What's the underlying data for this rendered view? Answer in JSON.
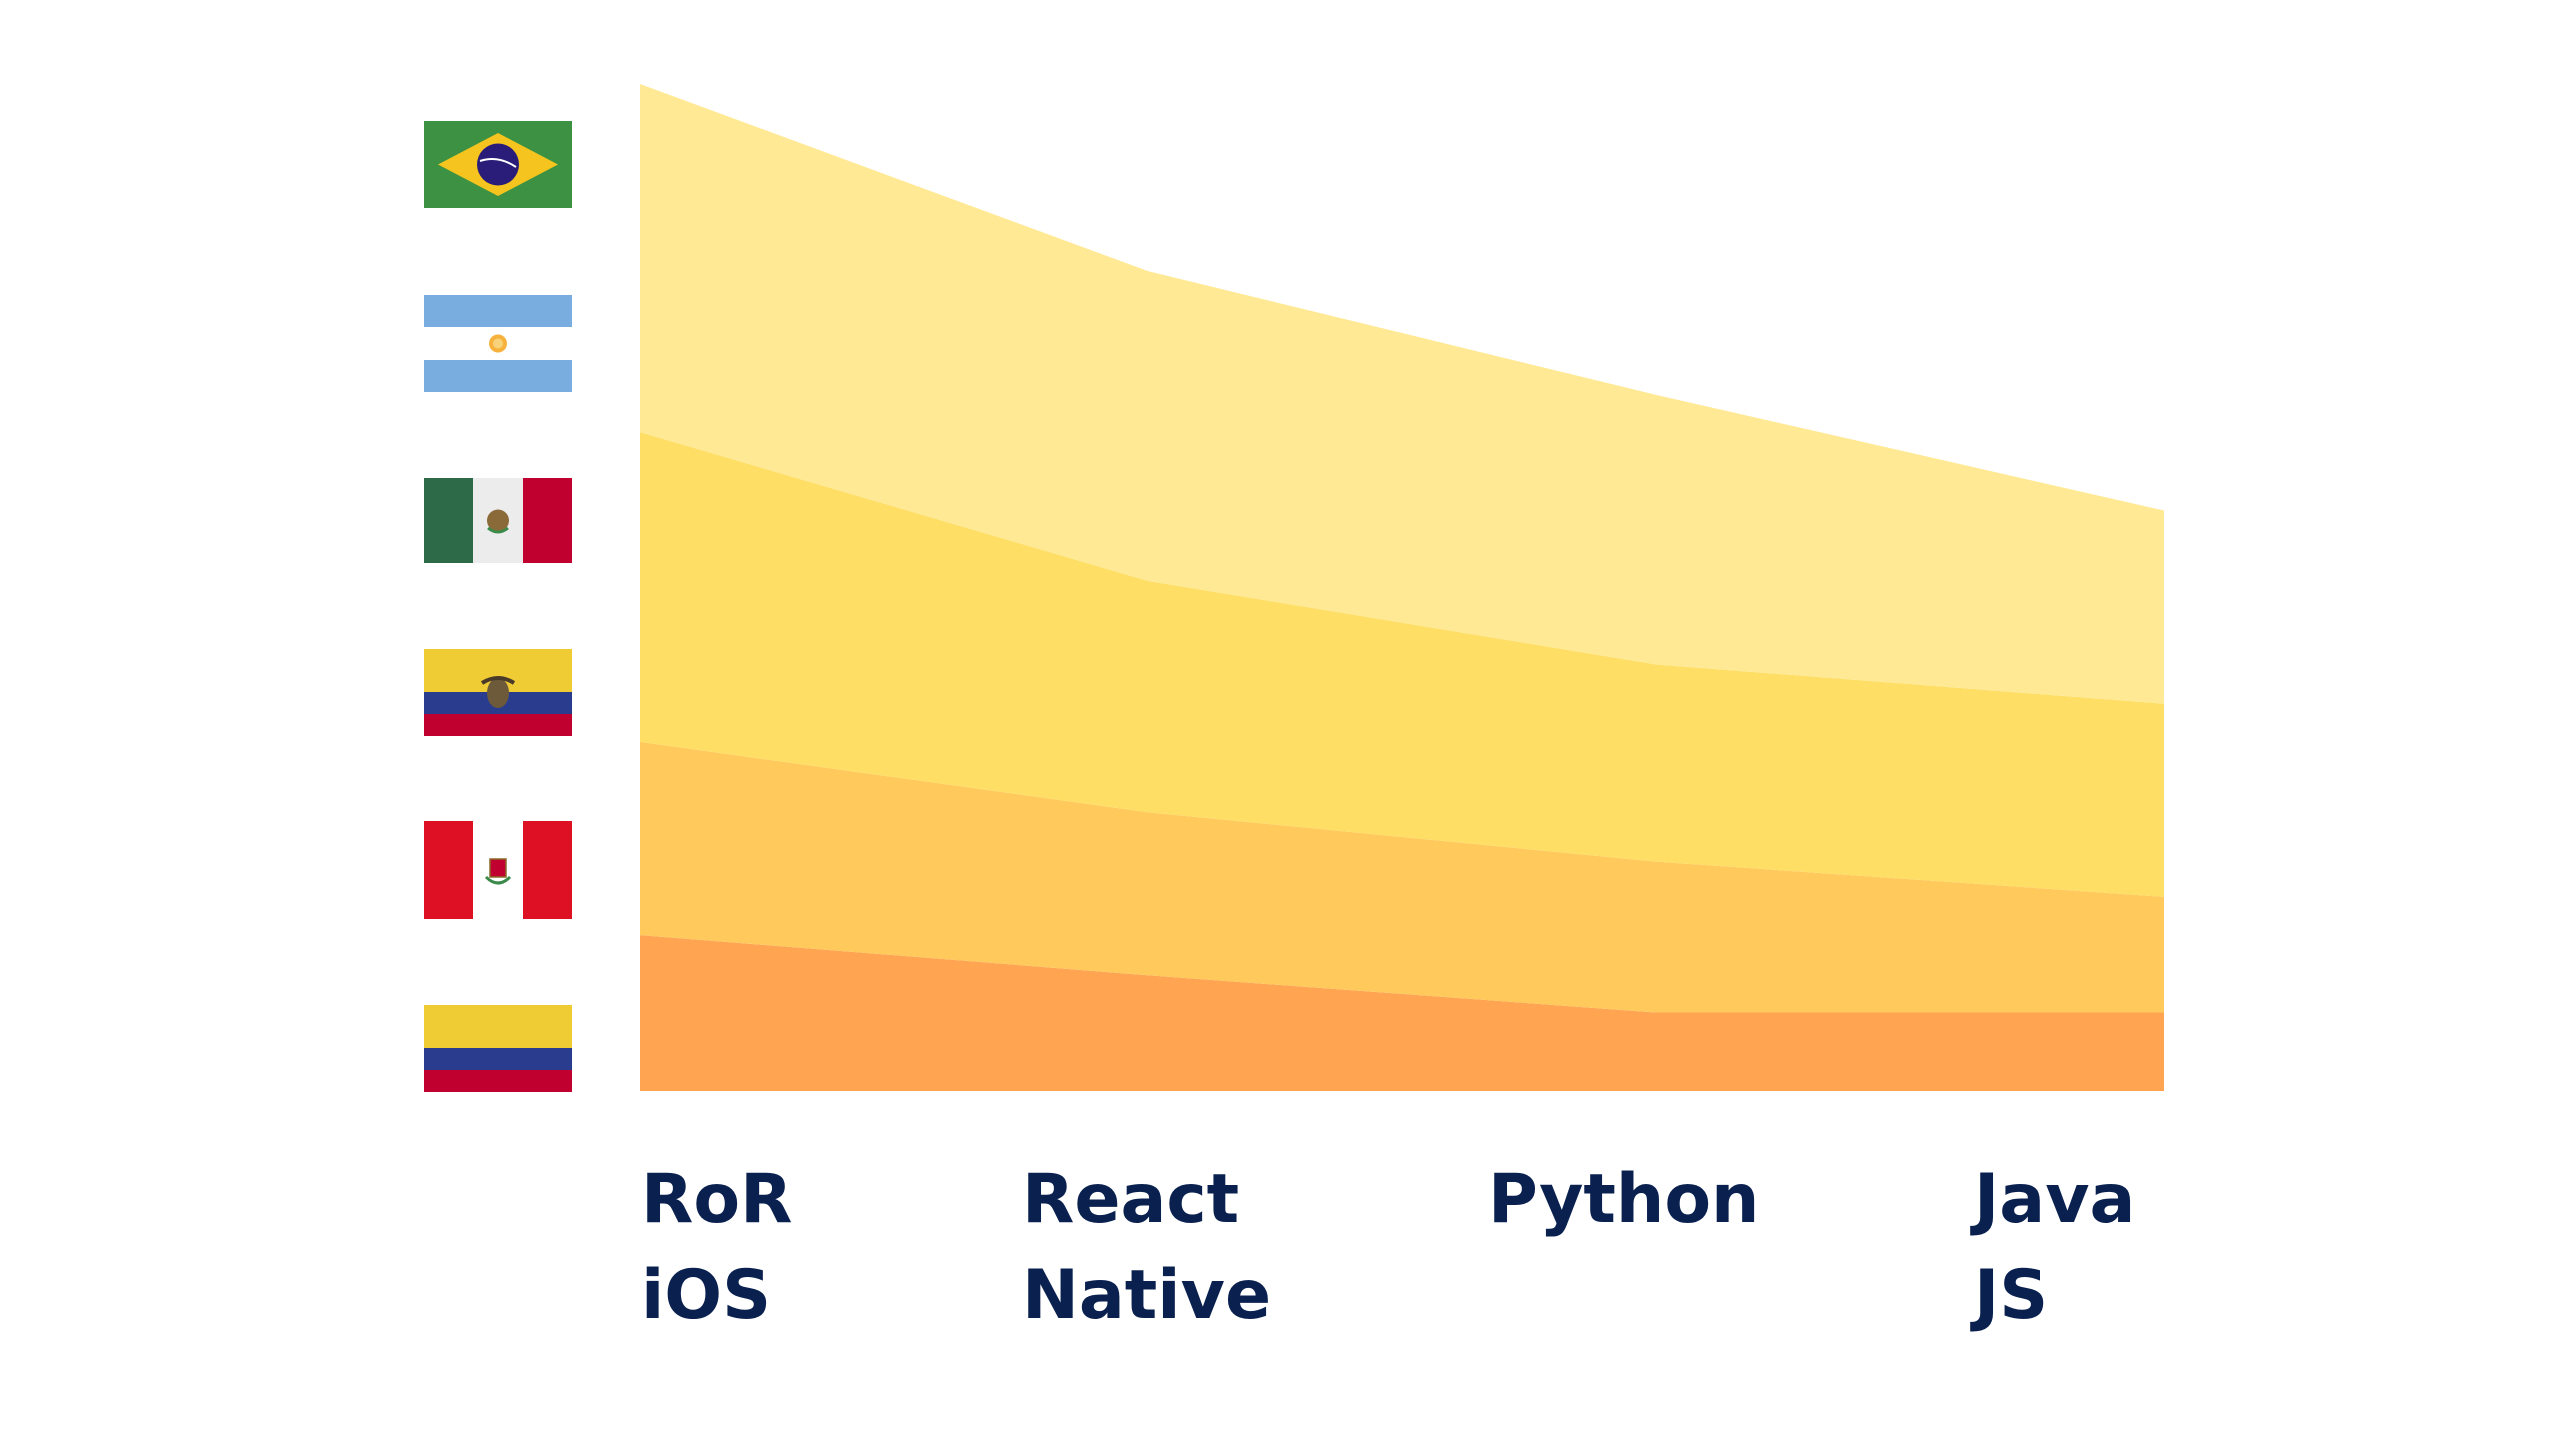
{
  "chart_data": {
    "type": "area",
    "stacked": true,
    "title": "",
    "xlabel": "",
    "ylabel": "",
    "categories": [
      "RoR iOS",
      "React Native",
      "Python",
      "Java JS"
    ],
    "category_label_lines": [
      [
        "RoR",
        "iOS"
      ],
      [
        "React",
        "Native"
      ],
      [
        "Python"
      ],
      [
        "Java",
        "JS"
      ]
    ],
    "ylim": [
      0,
      100
    ],
    "grid": false,
    "legend": "left (country flags)",
    "series": [
      {
        "color": "#FFA552",
        "values": [
          15.5,
          11.5,
          7.8,
          7.8
        ]
      },
      {
        "color": "#FFC95C",
        "values": [
          19.2,
          16.2,
          15.0,
          11.5
        ]
      },
      {
        "color": "#FFDE66",
        "values": [
          30.8,
          23.0,
          19.6,
          19.2
        ]
      },
      {
        "color": "#FFE994",
        "values": [
          34.6,
          30.8,
          26.8,
          19.2
        ]
      }
    ],
    "flags": [
      "brazil-flag",
      "argentina-flag",
      "mexico-flag",
      "ecuador-flag",
      "peru-flag",
      "colombia-flag"
    ],
    "label_color": "#0A2150"
  }
}
